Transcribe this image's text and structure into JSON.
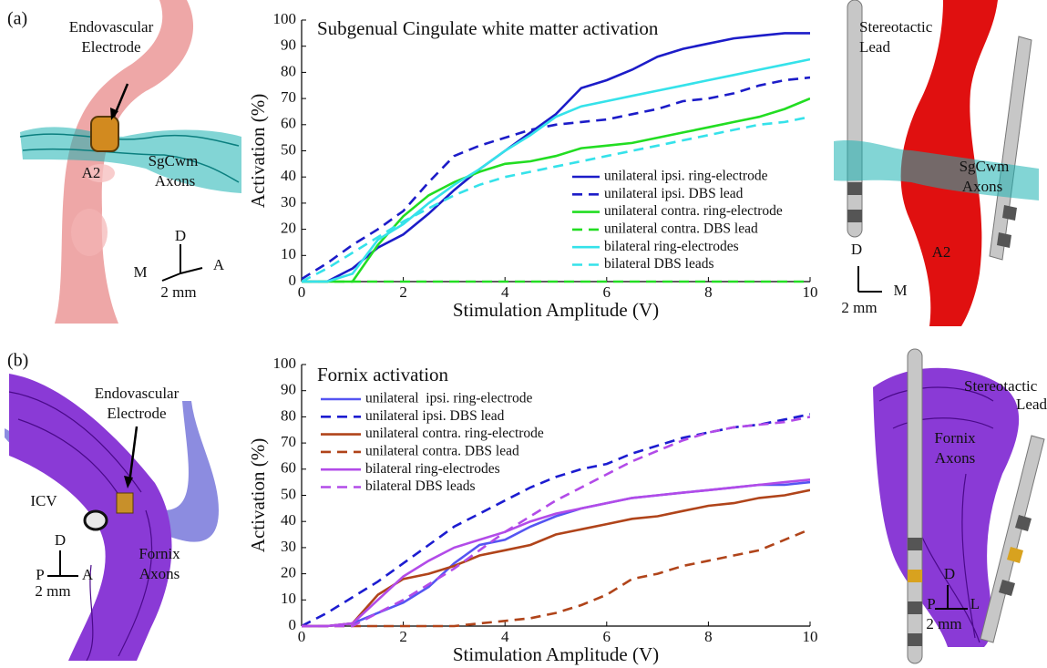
{
  "chart_data": [
    {
      "type": "line",
      "title": "Subgenual Cingulate white matter activation",
      "x_label": "Stimulation Amplitude (V)",
      "y_label": "Activation (%)",
      "x": [
        0,
        0.5,
        1,
        1.5,
        2,
        2.5,
        3,
        3.5,
        4,
        4.5,
        5,
        5.5,
        6,
        6.5,
        7,
        7.5,
        8,
        8.5,
        9,
        9.5,
        10
      ],
      "xlim": [
        0,
        10
      ],
      "xticks": [
        0,
        2,
        4,
        6,
        8,
        10
      ],
      "ylim": [
        0,
        100
      ],
      "yticks": [
        0,
        10,
        20,
        30,
        40,
        50,
        60,
        70,
        80,
        90,
        100
      ],
      "legend": "lower right",
      "series": [
        {
          "name": "unilateral ipsi. ring-electrode",
          "color": "#1c1cc8",
          "dash": false,
          "values": [
            0,
            0,
            5,
            13,
            18,
            26,
            35,
            43,
            50,
            57,
            64,
            74,
            77,
            81,
            86,
            89,
            91,
            93,
            94,
            95,
            95
          ]
        },
        {
          "name": "unilateral ipsi. DBS lead",
          "color": "#1c1cc8",
          "dash": true,
          "values": [
            1,
            7,
            14,
            20,
            27,
            38,
            48,
            52,
            55,
            58,
            60,
            61,
            62,
            64,
            66,
            69,
            70,
            72,
            75,
            77,
            78
          ]
        },
        {
          "name": "unilateral contra. ring-electrode",
          "color": "#22dd22",
          "dash": false,
          "values": [
            0,
            0,
            0,
            14,
            25,
            33,
            38,
            42,
            45,
            46,
            48,
            51,
            52,
            53,
            55,
            57,
            59,
            61,
            63,
            66,
            70
          ]
        },
        {
          "name": "unilateral contra. DBS lead",
          "color": "#22dd22",
          "dash": true,
          "values": [
            0,
            0,
            0,
            0,
            0,
            0,
            0,
            0,
            0,
            0,
            0,
            0,
            0,
            0,
            0,
            0,
            0,
            0,
            0,
            0,
            0
          ]
        },
        {
          "name": "bilateral ring-electrodes",
          "color": "#35e2ea",
          "dash": false,
          "values": [
            0,
            0,
            3,
            16,
            22,
            30,
            37,
            43,
            50,
            56,
            63,
            67,
            69,
            71,
            73,
            75,
            77,
            79,
            81,
            83,
            85
          ]
        },
        {
          "name": "bilateral DBS leads",
          "color": "#35e2ea",
          "dash": true,
          "values": [
            0,
            5,
            11,
            17,
            23,
            28,
            33,
            37,
            40,
            42,
            44,
            46,
            48,
            50,
            52,
            54,
            56,
            58,
            60,
            61,
            63
          ]
        }
      ]
    },
    {
      "type": "line",
      "title": "Fornix activation",
      "x_label": "Stimulation Amplitude (V)",
      "y_label": "Activation (%)",
      "x": [
        0,
        0.5,
        1,
        1.5,
        2,
        2.5,
        3,
        3.5,
        4,
        4.5,
        5,
        5.5,
        6,
        6.5,
        7,
        7.5,
        8,
        8.5,
        9,
        9.5,
        10
      ],
      "xlim": [
        0,
        10
      ],
      "xticks": [
        0,
        2,
        4,
        6,
        8,
        10
      ],
      "ylim": [
        0,
        100
      ],
      "yticks": [
        0,
        10,
        20,
        30,
        40,
        50,
        60,
        70,
        80,
        90,
        100
      ],
      "legend": "upper left",
      "series": [
        {
          "name": "unilateral  ipsi. ring-electrode",
          "color": "#5555f2",
          "dash": false,
          "values": [
            0,
            0,
            1,
            5,
            9,
            15,
            24,
            31,
            33,
            38,
            42,
            45,
            47,
            49,
            50,
            51,
            52,
            53,
            54,
            54,
            55
          ]
        },
        {
          "name": "unilateral ipsi. DBS lead",
          "color": "#1c1cd0",
          "dash": true,
          "values": [
            0,
            5,
            11,
            17,
            24,
            31,
            38,
            43,
            48,
            53,
            57,
            60,
            62,
            66,
            69,
            72,
            74,
            76,
            77,
            79,
            81
          ]
        },
        {
          "name": "unilateral contra. ring-electrode",
          "color": "#b0441a",
          "dash": false,
          "values": [
            0,
            0,
            1,
            12,
            18,
            20,
            23,
            27,
            29,
            31,
            35,
            37,
            39,
            41,
            42,
            44,
            46,
            47,
            49,
            50,
            52
          ]
        },
        {
          "name": "unilateral contra. DBS lead",
          "color": "#b0441a",
          "dash": true,
          "values": [
            0,
            0,
            0,
            0,
            0,
            0,
            0,
            1,
            2,
            3,
            5,
            8,
            12,
            18,
            20,
            23,
            25,
            27,
            29,
            33,
            37
          ]
        },
        {
          "name": "bilateral ring-electrodes",
          "color": "#b24be8",
          "dash": false,
          "values": [
            0,
            0,
            1,
            10,
            19,
            25,
            30,
            33,
            36,
            40,
            43,
            45,
            47,
            49,
            50,
            51,
            52,
            53,
            54,
            55,
            56
          ]
        },
        {
          "name": "bilateral DBS leads",
          "color": "#b24be8",
          "dash": true,
          "values": [
            0,
            0,
            0,
            5,
            10,
            16,
            22,
            29,
            36,
            42,
            48,
            53,
            58,
            63,
            67,
            71,
            74,
            76,
            77,
            78,
            80
          ]
        }
      ]
    }
  ],
  "figure_labels": {
    "a_left": [
      "(a)",
      "Endovascular",
      "Electrode",
      "A2",
      "SgCwm",
      "Axons",
      "D",
      "M",
      "A",
      "2 mm"
    ],
    "a_right": [
      "Stereotactic",
      "Lead",
      "SgCwm",
      "Axons",
      "A2",
      "D",
      "M",
      "2 mm"
    ],
    "b_left": [
      "(b)",
      "Endovascular",
      "Electrode",
      "ICV",
      "D",
      "P",
      "A",
      "2 mm",
      "Fornix",
      "Axons"
    ],
    "b_right": [
      "Stereotactic",
      "Lead",
      "Fornix",
      "Axons",
      "D",
      "P",
      "L",
      "2 mm"
    ]
  }
}
